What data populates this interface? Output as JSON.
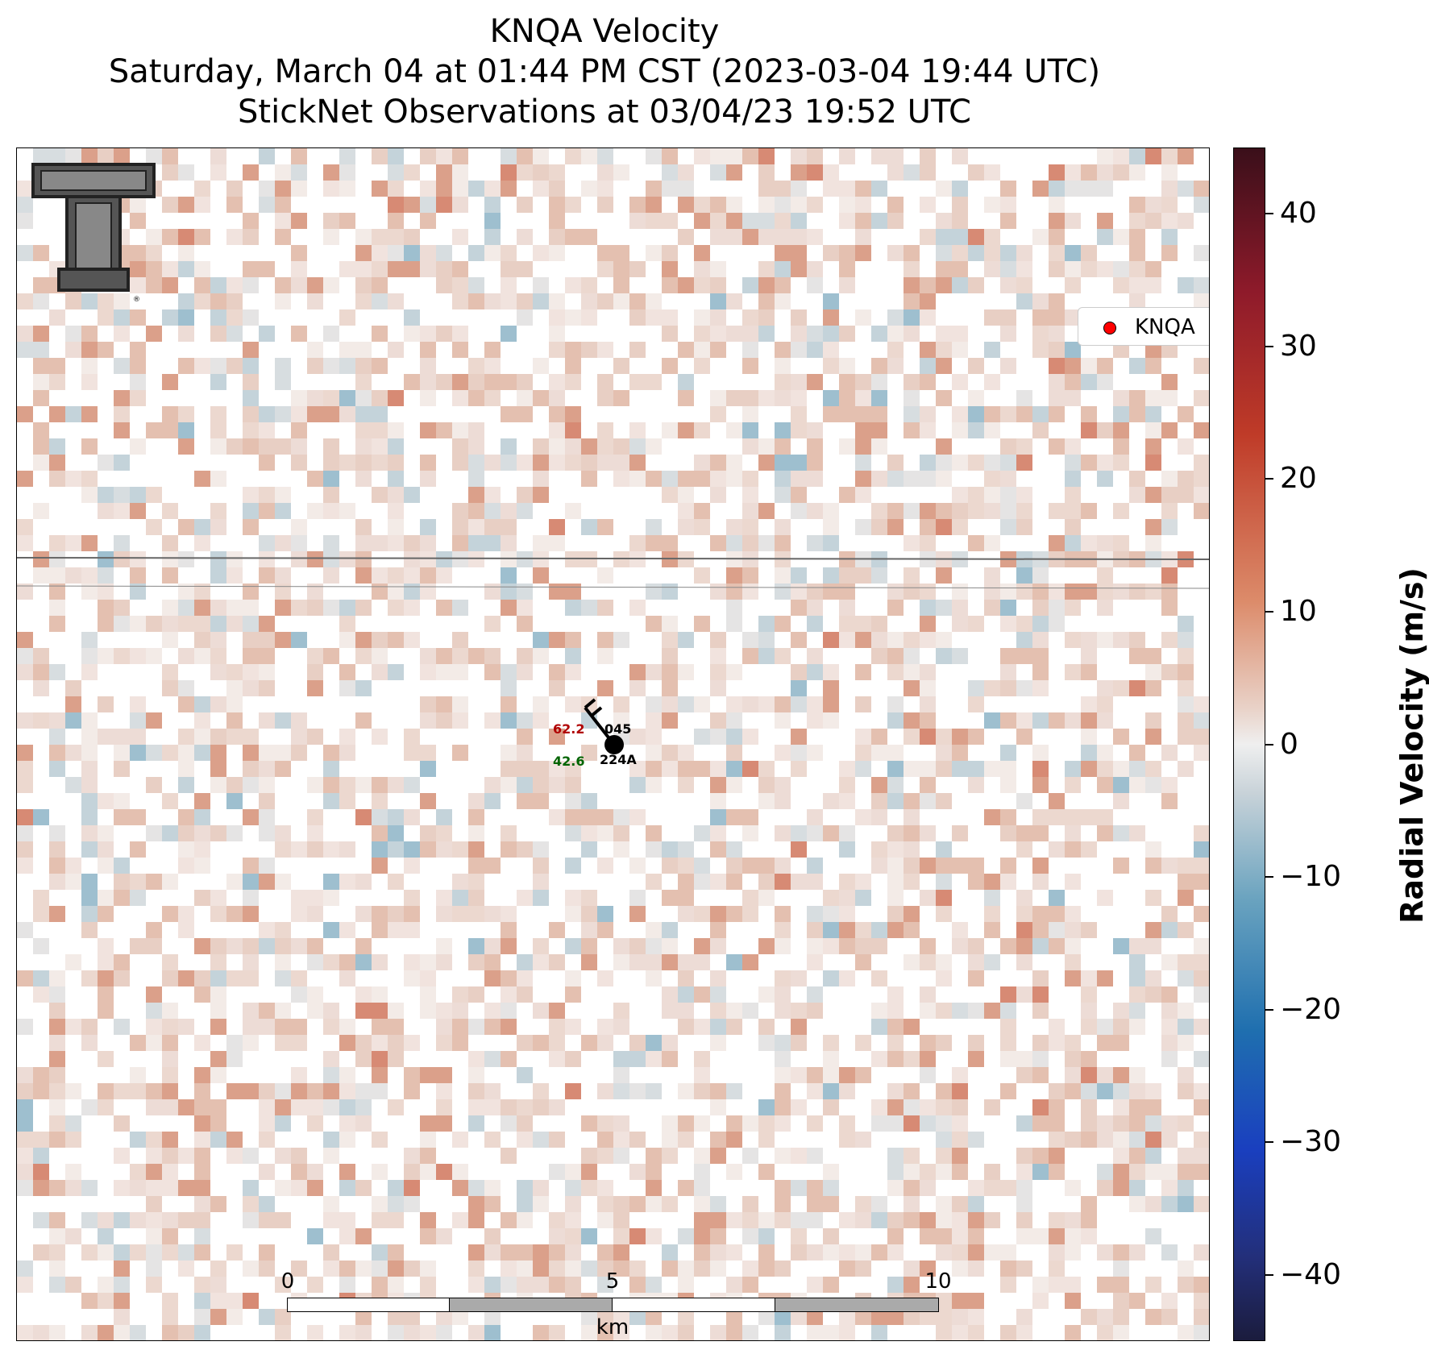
{
  "title": {
    "line1": "KNQA Velocity",
    "line2": "Saturday, March 04 at 01:44 PM CST (2023-03-04 19:44 UTC)",
    "line3": "StickNet Observations at 03/04/23 19:52 UTC"
  },
  "legend": {
    "label": "KNQA",
    "marker_color": "#ff0000"
  },
  "colorbar": {
    "title": "Radial Velocity (m/s)",
    "range": [
      -45,
      45
    ],
    "ticks": [
      {
        "value": 40,
        "label": "40"
      },
      {
        "value": 30,
        "label": "30"
      },
      {
        "value": 20,
        "label": "20"
      },
      {
        "value": 10,
        "label": "10"
      },
      {
        "value": 0,
        "label": "0"
      },
      {
        "value": -10,
        "label": "−10"
      },
      {
        "value": -20,
        "label": "−20"
      },
      {
        "value": -30,
        "label": "−30"
      },
      {
        "value": -40,
        "label": "−40"
      }
    ]
  },
  "scalebar": {
    "labels": [
      "0",
      "5",
      "10"
    ],
    "unit": "km"
  },
  "station": {
    "temperature": "62.2",
    "temperature_color": "#b00000",
    "dewpoint": "42.6",
    "dewpoint_color": "#006400",
    "pressure": "045",
    "station_id": "224A"
  },
  "map": {
    "logo": "texas-tech-double-t-logo"
  }
}
